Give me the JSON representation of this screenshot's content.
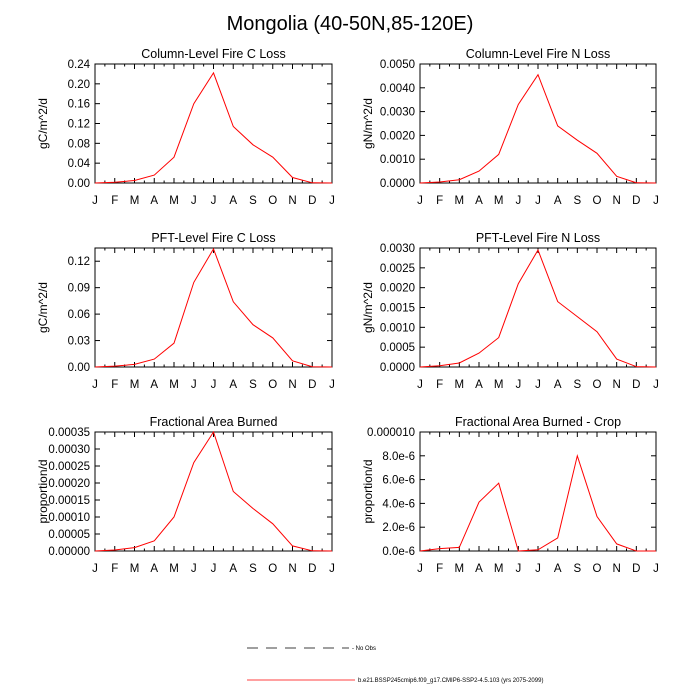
{
  "title": "Mongolia (40-50N,85-120E)",
  "legend": {
    "obs_label": "No Obs",
    "model_label": "b.e21.BSSP245cmip6.f09_g17.CMIP6-SSP2-4.5.103 (yrs 2075-2099)",
    "obs_color": "#000000",
    "model_color": "#ff0000"
  },
  "chart_data": [
    {
      "type": "line",
      "title": "Column-Level Fire C Loss",
      "ylabel": "gC/m^2/d",
      "xlabel": "",
      "categories": [
        "J",
        "F",
        "M",
        "A",
        "M",
        "J",
        "J",
        "A",
        "S",
        "O",
        "N",
        "D",
        "J"
      ],
      "ylim": [
        0,
        0.24
      ],
      "yticks": [
        "0.00",
        "0.04",
        "0.08",
        "0.12",
        "0.16",
        "0.20",
        "0.24"
      ],
      "series": [
        {
          "name": "b.e21.BSSP245cmip6.f09_g17.CMIP6-SSP2-4.5.103 (yrs 2075-2099)",
          "values": [
            0.0,
            0.0015,
            0.005,
            0.016,
            0.052,
            0.16,
            0.222,
            0.114,
            0.077,
            0.052,
            0.011,
            0.0005,
            0.0
          ]
        }
      ]
    },
    {
      "type": "line",
      "title": "Column-Level Fire N Loss",
      "ylabel": "gN/m^2/d",
      "xlabel": "",
      "categories": [
        "J",
        "F",
        "M",
        "A",
        "M",
        "J",
        "J",
        "A",
        "S",
        "O",
        "N",
        "D",
        "J"
      ],
      "ylim": [
        0,
        0.005
      ],
      "yticks": [
        "0.0000",
        "0.0010",
        "0.0020",
        "0.0030",
        "0.0040",
        "0.0050"
      ],
      "series": [
        {
          "name": "b.e21.BSSP245cmip6.f09_g17.CMIP6-SSP2-4.5.103 (yrs 2075-2099)",
          "values": [
            0.0,
            4e-05,
            0.00014,
            0.0005,
            0.0012,
            0.0033,
            0.00455,
            0.0024,
            0.0018,
            0.00125,
            0.00028,
            1e-05,
            0.0
          ]
        }
      ]
    },
    {
      "type": "line",
      "title": "PFT-Level Fire C Loss",
      "ylabel": "gC/m^2/d",
      "xlabel": "",
      "categories": [
        "J",
        "F",
        "M",
        "A",
        "M",
        "J",
        "J",
        "A",
        "S",
        "O",
        "N",
        "D",
        "J"
      ],
      "ylim": [
        0,
        0.135
      ],
      "yticks": [
        "0.00",
        "0.03",
        "0.06",
        "0.09",
        "0.12"
      ],
      "ytick_values": [
        0,
        0.03,
        0.06,
        0.09,
        0.12
      ],
      "series": [
        {
          "name": "b.e21.BSSP245cmip6.f09_g17.CMIP6-SSP2-4.5.103 (yrs 2075-2099)",
          "values": [
            0.0,
            0.001,
            0.003,
            0.009,
            0.027,
            0.096,
            0.134,
            0.074,
            0.048,
            0.033,
            0.007,
            0.0003,
            0.0
          ]
        }
      ]
    },
    {
      "type": "line",
      "title": "PFT-Level Fire N Loss",
      "ylabel": "gN/m^2/d",
      "xlabel": "",
      "categories": [
        "J",
        "F",
        "M",
        "A",
        "M",
        "J",
        "J",
        "A",
        "S",
        "O",
        "N",
        "D",
        "J"
      ],
      "ylim": [
        0,
        0.003
      ],
      "yticks": [
        "0.0000",
        "0.0005",
        "0.0010",
        "0.0015",
        "0.0020",
        "0.0025",
        "0.0030"
      ],
      "series": [
        {
          "name": "b.e21.BSSP245cmip6.f09_g17.CMIP6-SSP2-4.5.103 (yrs 2075-2099)",
          "values": [
            0.0,
            3e-05,
            0.0001,
            0.00035,
            0.00074,
            0.0021,
            0.00295,
            0.00165,
            0.00127,
            0.00089,
            0.0002,
            1e-05,
            0.0
          ]
        }
      ]
    },
    {
      "type": "line",
      "title": "Fractional Area Burned",
      "ylabel": "proportion/d",
      "xlabel": "",
      "categories": [
        "J",
        "F",
        "M",
        "A",
        "M",
        "J",
        "J",
        "A",
        "S",
        "O",
        "N",
        "D",
        "J"
      ],
      "ylim": [
        0,
        0.00035
      ],
      "yticks": [
        "0.00000",
        "0.00005",
        "0.00010",
        "0.00015",
        "0.00020",
        "0.00025",
        "0.00030",
        "0.00035"
      ],
      "series": [
        {
          "name": "b.e21.BSSP245cmip6.f09_g17.CMIP6-SSP2-4.5.103 (yrs 2075-2099)",
          "values": [
            0.0,
            3e-06,
            1e-05,
            3e-05,
            0.0001,
            0.00026,
            0.00035,
            0.000175,
            0.000125,
            8e-05,
            1.5e-05,
            5e-07,
            0.0
          ]
        }
      ]
    },
    {
      "type": "line",
      "title": "Fractional Area Burned - Crop",
      "ylabel": "proportion/d",
      "xlabel": "",
      "categories": [
        "J",
        "F",
        "M",
        "A",
        "M",
        "J",
        "J",
        "A",
        "S",
        "O",
        "N",
        "D",
        "J"
      ],
      "ylim": [
        0,
        1e-05
      ],
      "yticks": [
        "0.0e-6",
        "2.0e-6",
        "4.0e-6",
        "6.0e-6",
        "8.0e-6",
        "0.000010"
      ],
      "series": [
        {
          "name": "b.e21.BSSP245cmip6.f09_g17.CMIP6-SSP2-4.5.103 (yrs 2075-2099)",
          "values": [
            0.0,
            2e-07,
            3e-07,
            4.1e-06,
            5.7e-06,
            0.0,
            1e-07,
            1.1e-06,
            8e-06,
            2.9e-06,
            6e-07,
            0.0,
            0.0
          ]
        }
      ]
    }
  ]
}
